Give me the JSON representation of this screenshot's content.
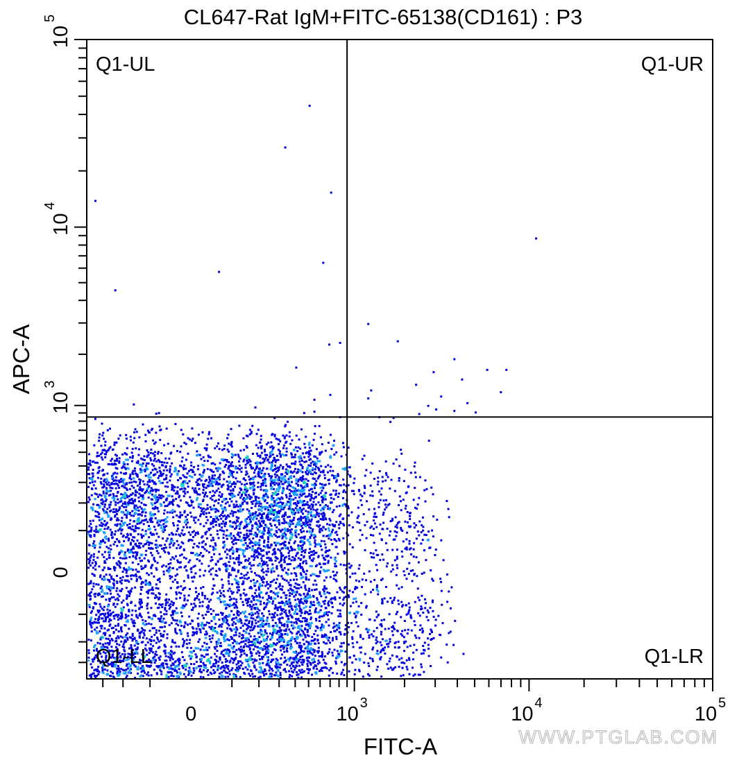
{
  "chart_data": {
    "type": "scatter",
    "title": "CL647-Rat IgM+FITC-65138(CD161) : P3",
    "xlabel": "FITC-A",
    "ylabel": "APC-A",
    "x_scale": "biexponential",
    "y_scale": "biexponential",
    "xlim": [
      -400,
      100000
    ],
    "ylim": [
      -400,
      100000
    ],
    "x_tick_labels": [
      {
        "value": 0,
        "label": "0",
        "exp": ""
      },
      {
        "value": 1000,
        "label": "10",
        "exp": "3"
      },
      {
        "value": 10000,
        "label": "10",
        "exp": "4"
      },
      {
        "value": 100000,
        "label": "10",
        "exp": "5"
      }
    ],
    "y_tick_labels": [
      {
        "value": 0,
        "label": "0",
        "exp": ""
      },
      {
        "value": 1000,
        "label": "10",
        "exp": "3"
      },
      {
        "value": 10000,
        "label": "10",
        "exp": "4"
      },
      {
        "value": 100000,
        "label": "10",
        "exp": "5"
      }
    ],
    "gates": {
      "x_threshold": 900,
      "y_threshold": 850
    },
    "quadrants": [
      {
        "name": "Q1-UL",
        "position": "top-left"
      },
      {
        "name": "Q1-UR",
        "position": "top-right"
      },
      {
        "name": "Q1-LL",
        "position": "bottom-left"
      },
      {
        "name": "Q1-LR",
        "position": "bottom-right"
      }
    ],
    "density_palette": [
      "#0000e0",
      "#1aa0ff",
      "#20d0c0",
      "#40e040",
      "#e0e020",
      "#ff2020"
    ],
    "populations": [
      {
        "name": "main",
        "center": [
          60,
          20
        ],
        "spread": [
          330,
          270
        ],
        "count": 7000
      },
      {
        "name": "tail",
        "center": [
          1300,
          -20
        ],
        "spread": [
          900,
          230
        ],
        "count": 900
      },
      {
        "name": "ll-low",
        "center": [
          -60,
          -330
        ],
        "spread": [
          110,
          40
        ],
        "count": 160
      }
    ],
    "sparse_events": [
      [
        500,
        45000
      ],
      [
        330,
        27000
      ],
      [
        700,
        15500
      ],
      [
        -350,
        14000
      ],
      [
        620,
        6500
      ],
      [
        60,
        5800
      ],
      [
        -240,
        4600
      ],
      [
        1200,
        3000
      ],
      [
        1800,
        2400
      ],
      [
        680,
        2300
      ],
      [
        800,
        2350
      ],
      [
        3800,
        1900
      ],
      [
        400,
        1700
      ],
      [
        2900,
        1600
      ],
      [
        5800,
        1650
      ],
      [
        7400,
        1650
      ],
      [
        4200,
        1450
      ],
      [
        2300,
        1350
      ],
      [
        1250,
        1250
      ],
      [
        6900,
        1220
      ],
      [
        1200,
        1120
      ],
      [
        3200,
        1150
      ],
      [
        540,
        1100
      ],
      [
        4500,
        1050
      ],
      [
        -160,
        1030
      ],
      [
        2700,
        1010
      ],
      [
        3000,
        960
      ],
      [
        540,
        930
      ],
      [
        3800,
        940
      ],
      [
        5000,
        920
      ],
      [
        2400,
        900
      ],
      [
        1400,
        860
      ],
      [
        1700,
        850
      ],
      [
        800,
        860
      ],
      [
        270,
        850
      ],
      [
        10800,
        8800
      ]
    ]
  },
  "watermark": "WWW.PTGLAB.COM"
}
